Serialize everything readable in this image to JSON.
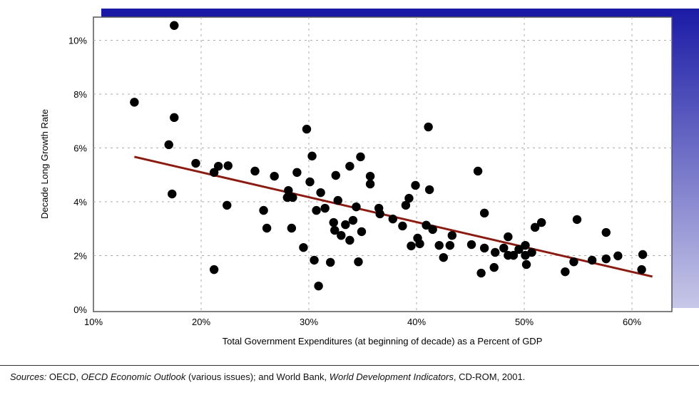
{
  "chart_data": {
    "type": "scatter",
    "title": "",
    "xlabel": "Total Government Expenditures (at beginning of decade) as a Percent of GDP",
    "ylabel": "Decade Long Growth Rate",
    "xlim": [
      10,
      63
    ],
    "ylim": [
      0,
      11
    ],
    "x_ticks": [
      10,
      20,
      30,
      40,
      50,
      60
    ],
    "x_tick_labels": [
      "10%",
      "20%",
      "30%",
      "40%",
      "50%",
      "60%"
    ],
    "y_ticks": [
      0,
      2,
      4,
      6,
      8,
      10
    ],
    "y_tick_labels": [
      "0%",
      "2%",
      "4%",
      "6%",
      "8%",
      "10%"
    ],
    "grid": true,
    "point_color": "#000000",
    "trend_color": "#8b1a10",
    "accent_color": "#1a1aa6",
    "trendline": {
      "x": [
        13.8,
        61.9
      ],
      "y": [
        5.67,
        1.22
      ]
    },
    "points": [
      [
        13.8,
        7.7
      ],
      [
        17.5,
        10.55
      ],
      [
        17.5,
        7.13
      ],
      [
        17.0,
        6.12
      ],
      [
        17.3,
        4.29
      ],
      [
        19.5,
        5.43
      ],
      [
        21.2,
        5.09
      ],
      [
        21.2,
        1.48
      ],
      [
        21.6,
        5.32
      ],
      [
        22.5,
        5.34
      ],
      [
        22.4,
        3.87
      ],
      [
        25.0,
        5.14
      ],
      [
        25.8,
        3.68
      ],
      [
        26.1,
        3.02
      ],
      [
        26.8,
        4.95
      ],
      [
        28.0,
        4.16
      ],
      [
        28.1,
        4.42
      ],
      [
        28.5,
        4.16
      ],
      [
        28.4,
        3.02
      ],
      [
        28.9,
        5.09
      ],
      [
        29.5,
        2.3
      ],
      [
        29.8,
        6.7
      ],
      [
        30.3,
        5.7
      ],
      [
        30.1,
        4.74
      ],
      [
        30.5,
        1.83
      ],
      [
        30.7,
        3.68
      ],
      [
        31.1,
        4.34
      ],
      [
        30.9,
        0.87
      ],
      [
        31.5,
        3.76
      ],
      [
        32.0,
        1.75
      ],
      [
        32.3,
        3.23
      ],
      [
        32.4,
        2.94
      ],
      [
        32.5,
        4.98
      ],
      [
        32.7,
        4.05
      ],
      [
        33.0,
        2.75
      ],
      [
        33.4,
        3.15
      ],
      [
        33.8,
        2.57
      ],
      [
        33.8,
        5.32
      ],
      [
        34.1,
        3.31
      ],
      [
        34.4,
        3.81
      ],
      [
        34.6,
        1.77
      ],
      [
        34.8,
        5.67
      ],
      [
        34.9,
        2.89
      ],
      [
        35.7,
        4.95
      ],
      [
        35.7,
        4.66
      ],
      [
        36.5,
        3.76
      ],
      [
        36.6,
        3.55
      ],
      [
        37.8,
        3.36
      ],
      [
        38.7,
        3.1
      ],
      [
        39.0,
        3.87
      ],
      [
        39.3,
        4.13
      ],
      [
        39.5,
        2.36
      ],
      [
        39.9,
        4.61
      ],
      [
        40.1,
        2.65
      ],
      [
        40.3,
        2.44
      ],
      [
        40.9,
        3.13
      ],
      [
        41.1,
        6.78
      ],
      [
        41.2,
        4.45
      ],
      [
        41.5,
        2.97
      ],
      [
        42.1,
        2.38
      ],
      [
        42.5,
        1.93
      ],
      [
        43.1,
        2.38
      ],
      [
        43.3,
        2.75
      ],
      [
        45.1,
        2.41
      ],
      [
        45.7,
        5.14
      ],
      [
        46.0,
        1.35
      ],
      [
        46.3,
        3.58
      ],
      [
        46.3,
        2.28
      ],
      [
        47.2,
        1.56
      ],
      [
        47.3,
        2.12
      ],
      [
        48.1,
        2.28
      ],
      [
        48.5,
        2.7
      ],
      [
        48.5,
        2.01
      ],
      [
        49.0,
        2.01
      ],
      [
        49.5,
        2.23
      ],
      [
        50.1,
        2.38
      ],
      [
        50.1,
        2.01
      ],
      [
        50.2,
        1.67
      ],
      [
        50.7,
        2.12
      ],
      [
        51.0,
        3.05
      ],
      [
        51.6,
        3.23
      ],
      [
        53.8,
        1.4
      ],
      [
        54.6,
        1.77
      ],
      [
        54.9,
        3.34
      ],
      [
        56.3,
        1.83
      ],
      [
        57.6,
        1.88
      ],
      [
        57.6,
        2.86
      ],
      [
        58.7,
        1.99
      ],
      [
        61.0,
        2.04
      ],
      [
        60.9,
        1.48
      ]
    ]
  },
  "source": {
    "prefix": "Sources:",
    "part1": " OECD, ",
    "title1": "OECD Economic Outlook",
    "part2": " (various issues); and World Bank, ",
    "title2": "World Development Indicators",
    "part3": ", CD-ROM, 2001."
  }
}
